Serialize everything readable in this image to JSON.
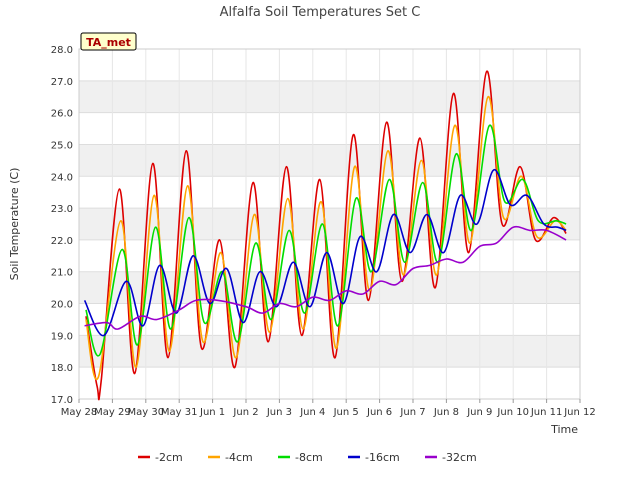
{
  "chart_data": {
    "type": "line",
    "title": "Alfalfa Soil Temperatures Set C",
    "xlabel": "Time",
    "ylabel": "Soil Temperature (C)",
    "ylim": [
      17.0,
      28.0
    ],
    "xlim": [
      "2025-05-28",
      "2025-06-12"
    ],
    "yticks": [
      "17.0",
      "18.0",
      "19.0",
      "20.0",
      "21.0",
      "22.0",
      "23.0",
      "24.0",
      "25.0",
      "26.0",
      "27.0",
      "28.0"
    ],
    "xticks": [
      "May 28",
      "May 29",
      "May 30",
      "May 31",
      "Jun 1",
      "Jun 2",
      "Jun 3",
      "Jun 4",
      "Jun 5",
      "Jun 6",
      "Jun 7",
      "Jun 8",
      "Jun 9",
      "Jun 10",
      "Jun 11",
      "Jun 12"
    ],
    "grid": true,
    "banded_background": true,
    "station_label": "TA_met",
    "legend_position": "bottom",
    "series": [
      {
        "name": "-2cm",
        "color": "#dd0000",
        "x": [
          "2025-05-28 05:00",
          "2025-05-28 13:00",
          "2025-05-28 16:00",
          "2025-05-29 05:00",
          "2025-05-29 16:00",
          "2025-05-30 05:00",
          "2025-05-30 16:00",
          "2025-05-31 05:00",
          "2025-05-31 16:00",
          "2025-06-01 05:00",
          "2025-06-01 16:00",
          "2025-06-02 05:00",
          "2025-06-02 16:00",
          "2025-06-03 05:00",
          "2025-06-03 16:00",
          "2025-06-04 05:00",
          "2025-06-04 16:00",
          "2025-06-05 05:00",
          "2025-06-05 16:00",
          "2025-06-06 05:00",
          "2025-06-06 16:00",
          "2025-06-07 05:00",
          "2025-06-07 16:00",
          "2025-06-08 05:00",
          "2025-06-08 16:00",
          "2025-06-09 05:00",
          "2025-06-09 16:00",
          "2025-06-10 05:00",
          "2025-06-10 16:00",
          "2025-06-11 05:00",
          "2025-06-11 14:00"
        ],
        "y": [
          19.6,
          17.4,
          17.6,
          23.6,
          17.8,
          24.4,
          18.3,
          24.8,
          18.6,
          22.0,
          18.0,
          23.8,
          18.8,
          24.3,
          19.0,
          23.9,
          18.3,
          25.3,
          20.1,
          25.7,
          20.7,
          25.2,
          20.5,
          26.6,
          21.6,
          27.3,
          22.5,
          24.3,
          22.0,
          22.7,
          22.2
        ]
      },
      {
        "name": "-4cm",
        "color": "#ffa500",
        "x": [
          "2025-05-28 05:00",
          "2025-05-28 14:00",
          "2025-05-29 06:00",
          "2025-05-29 17:00",
          "2025-05-30 06:00",
          "2025-05-30 17:00",
          "2025-05-31 06:00",
          "2025-05-31 17:00",
          "2025-06-01 06:00",
          "2025-06-01 17:00",
          "2025-06-02 06:00",
          "2025-06-02 17:00",
          "2025-06-03 06:00",
          "2025-06-03 17:00",
          "2025-06-04 06:00",
          "2025-06-04 17:00",
          "2025-06-05 06:00",
          "2025-06-05 17:00",
          "2025-06-06 06:00",
          "2025-06-06 17:00",
          "2025-06-07 06:00",
          "2025-06-07 17:00",
          "2025-06-08 06:00",
          "2025-06-08 17:00",
          "2025-06-09 06:00",
          "2025-06-09 17:00",
          "2025-06-10 06:00",
          "2025-06-10 17:00",
          "2025-06-11 06:00",
          "2025-06-11 14:00"
        ],
        "y": [
          19.5,
          17.7,
          22.6,
          18.0,
          23.4,
          18.5,
          23.7,
          18.8,
          21.6,
          18.3,
          22.8,
          19.1,
          23.3,
          19.2,
          23.2,
          18.6,
          24.3,
          20.4,
          24.8,
          20.9,
          24.5,
          20.9,
          25.6,
          21.9,
          26.5,
          22.7,
          24.0,
          22.1,
          22.6,
          22.3
        ]
      },
      {
        "name": "-8cm",
        "color": "#00dd00",
        "x": [
          "2025-05-28 05:00",
          "2025-05-28 15:00",
          "2025-05-29 07:00",
          "2025-05-29 18:00",
          "2025-05-30 07:00",
          "2025-05-30 18:00",
          "2025-05-31 07:00",
          "2025-05-31 18:00",
          "2025-06-01 07:00",
          "2025-06-01 18:00",
          "2025-06-02 07:00",
          "2025-06-02 18:00",
          "2025-06-03 07:00",
          "2025-06-03 18:00",
          "2025-06-04 07:00",
          "2025-06-04 18:00",
          "2025-06-05 07:00",
          "2025-06-05 18:00",
          "2025-06-06 07:00",
          "2025-06-06 18:00",
          "2025-06-07 07:00",
          "2025-06-07 18:00",
          "2025-06-08 07:00",
          "2025-06-08 18:00",
          "2025-06-09 07:00",
          "2025-06-09 18:00",
          "2025-06-10 07:00",
          "2025-06-10 18:00",
          "2025-06-11 07:00",
          "2025-06-11 14:00"
        ],
        "y": [
          19.8,
          18.4,
          21.7,
          18.7,
          22.4,
          19.2,
          22.7,
          19.4,
          21.0,
          18.8,
          21.9,
          19.5,
          22.3,
          19.7,
          22.5,
          19.3,
          23.3,
          21.0,
          23.9,
          21.3,
          23.8,
          21.3,
          24.7,
          22.3,
          25.6,
          23.2,
          23.9,
          22.6,
          22.6,
          22.5
        ]
      },
      {
        "name": "-16cm",
        "color": "#0000cc",
        "x": [
          "2025-05-28 04:00",
          "2025-05-28 18:00",
          "2025-05-29 10:00",
          "2025-05-29 22:00",
          "2025-05-30 10:00",
          "2025-05-30 22:00",
          "2025-05-31 10:00",
          "2025-05-31 22:00",
          "2025-06-01 10:00",
          "2025-06-01 22:00",
          "2025-06-02 10:00",
          "2025-06-02 22:00",
          "2025-06-03 10:00",
          "2025-06-03 22:00",
          "2025-06-04 10:00",
          "2025-06-04 22:00",
          "2025-06-05 10:00",
          "2025-06-05 22:00",
          "2025-06-06 10:00",
          "2025-06-06 22:00",
          "2025-06-07 10:00",
          "2025-06-07 22:00",
          "2025-06-08 10:00",
          "2025-06-08 22:00",
          "2025-06-09 10:00",
          "2025-06-09 22:00",
          "2025-06-10 10:00",
          "2025-06-10 22:00",
          "2025-06-11 08:00",
          "2025-06-11 14:00"
        ],
        "y": [
          20.1,
          19.0,
          20.7,
          19.3,
          21.2,
          19.7,
          21.5,
          20.0,
          21.1,
          19.4,
          21.0,
          19.9,
          21.3,
          19.9,
          21.6,
          20.0,
          22.1,
          21.0,
          22.8,
          21.6,
          22.8,
          21.6,
          23.4,
          22.5,
          24.2,
          23.1,
          23.4,
          22.5,
          22.4,
          22.3
        ]
      },
      {
        "name": "-32cm",
        "color": "#9900cc",
        "x": [
          "2025-05-28 04:00",
          "2025-05-28 20:00",
          "2025-05-29 04:00",
          "2025-05-29 20:00",
          "2025-05-30 08:00",
          "2025-05-31 00:00",
          "2025-05-31 12:00",
          "2025-06-01 04:00",
          "2025-06-02 00:00",
          "2025-06-02 12:00",
          "2025-06-03 00:00",
          "2025-06-03 12:00",
          "2025-06-04 00:00",
          "2025-06-04 12:00",
          "2025-06-05 00:00",
          "2025-06-05 12:00",
          "2025-06-06 00:00",
          "2025-06-06 12:00",
          "2025-06-07 00:00",
          "2025-06-07 12:00",
          "2025-06-08 00:00",
          "2025-06-08 12:00",
          "2025-06-09 00:00",
          "2025-06-09 12:00",
          "2025-06-10 00:00",
          "2025-06-10 12:00",
          "2025-06-11 00:00",
          "2025-06-11 14:00"
        ],
        "y": [
          19.3,
          19.4,
          19.2,
          19.6,
          19.5,
          19.8,
          20.1,
          20.1,
          19.9,
          19.7,
          20.0,
          19.9,
          20.2,
          20.1,
          20.4,
          20.3,
          20.7,
          20.6,
          21.1,
          21.2,
          21.4,
          21.3,
          21.8,
          21.9,
          22.4,
          22.3,
          22.3,
          22.0
        ]
      }
    ]
  }
}
